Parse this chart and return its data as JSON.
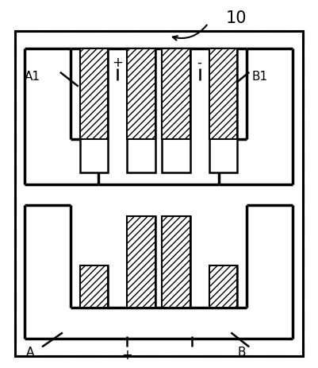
{
  "bg_color": "#ffffff",
  "lc": "#000000",
  "figsize": [
    4.01,
    4.63
  ],
  "dpi": 100,
  "label_A1": "A1",
  "label_B1": "B1",
  "label_A": "A",
  "label_B": "B",
  "label_plus": "+",
  "label_minus": "-",
  "label_10": "10"
}
